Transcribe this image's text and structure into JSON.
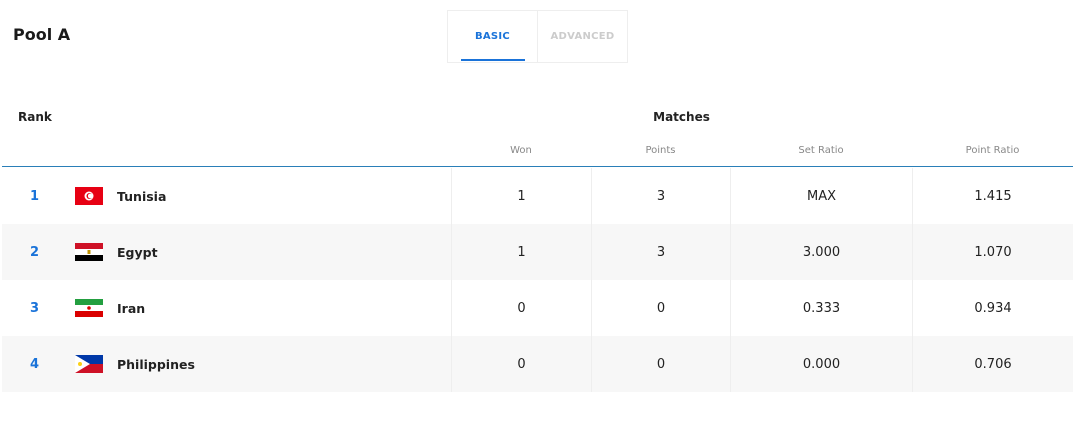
{
  "title": "Pool A",
  "tabs": [
    {
      "label": "BASIC",
      "active": true
    },
    {
      "label": "ADVANCED",
      "active": false
    }
  ],
  "header": {
    "rank": "Rank",
    "matches": "Matches",
    "columns": [
      "Won",
      "Points",
      "Set Ratio",
      "Point Ratio"
    ]
  },
  "rows": [
    {
      "rank": "1",
      "team": "Tunisia",
      "flag": "tunisia-flag",
      "won": "1",
      "points": "3",
      "set_ratio": "MAX",
      "point_ratio": "1.415"
    },
    {
      "rank": "2",
      "team": "Egypt",
      "flag": "egypt-flag",
      "won": "1",
      "points": "3",
      "set_ratio": "3.000",
      "point_ratio": "1.070"
    },
    {
      "rank": "3",
      "team": "Iran",
      "flag": "iran-flag",
      "won": "0",
      "points": "0",
      "set_ratio": "0.333",
      "point_ratio": "0.934"
    },
    {
      "rank": "4",
      "team": "Philippines",
      "flag": "philippines-flag",
      "won": "0",
      "points": "0",
      "set_ratio": "0.000",
      "point_ratio": "0.706"
    }
  ],
  "colors": {
    "accent": "#1a73d9",
    "header_line": "#2a7fb8",
    "alt_row": "#f7f7f7"
  }
}
